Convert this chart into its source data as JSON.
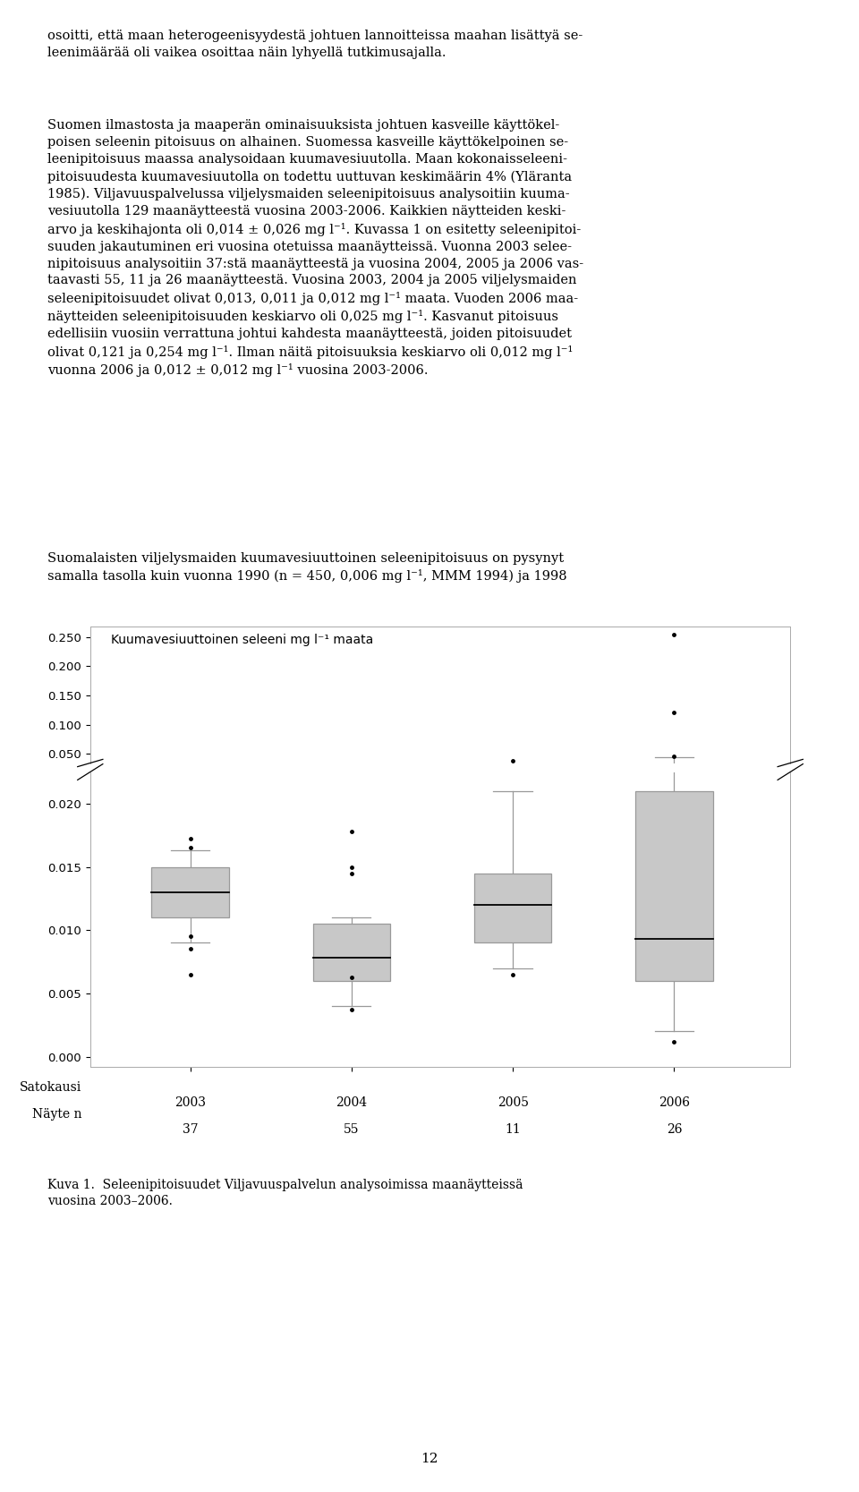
{
  "title_text": "Kuumavesiuuttoinen seleeni mg l⁻¹ maata",
  "years": [
    "2003",
    "2004",
    "2005",
    "2006"
  ],
  "n_samples": [
    "37",
    "55",
    "11",
    "26"
  ],
  "xlabel_line1": "Satokausi",
  "xlabel_line2": "Näyte n",
  "boxes": [
    {
      "year": "2003",
      "q1": 0.011,
      "median": 0.013,
      "q3": 0.015,
      "whisker_low": 0.009,
      "whisker_high": 0.0163,
      "fliers_low": [
        0.0095,
        0.0085,
        0.0065
      ],
      "fliers_high": [
        0.0165,
        0.0172
      ]
    },
    {
      "year": "2004",
      "q1": 0.006,
      "median": 0.0078,
      "q3": 0.0105,
      "whisker_low": 0.004,
      "whisker_high": 0.011,
      "fliers_low": [
        0.0063,
        0.0037
      ],
      "fliers_high": [
        0.0178,
        0.015,
        0.0145
      ]
    },
    {
      "year": "2005",
      "q1": 0.009,
      "median": 0.012,
      "q3": 0.0145,
      "whisker_low": 0.007,
      "whisker_high": 0.021,
      "fliers_low": [
        0.0065
      ],
      "fliers_high": [
        0.038
      ]
    },
    {
      "year": "2006",
      "q1": 0.006,
      "median": 0.0093,
      "q3": 0.021,
      "whisker_low": 0.002,
      "whisker_high": 0.044,
      "fliers_low": [
        0.0012
      ],
      "fliers_high": [
        0.046,
        0.121,
        0.254
      ]
    }
  ],
  "box_color": "#c8c8c8",
  "whisker_color": "#999999",
  "flier_color": "black",
  "para1": "osoitti, että maan heterogeenisyydestä johtuen lannoitteissa maahan lisättyä se-\nleenimäärää oli vaikea osoittaa näin lyhyellä tutkimusajalla.",
  "para2": "Suomen ilmastosta ja maaperän ominaisuuksista johtuen kasveille käyttökel-\npoisen seleenin pitoisuus on alhainen. Suomessa kasveille käyttökelpoinen se-\nleenipitoisuus maassa analysoidaan kuumavesiuutolla. Maan kokonaisseleeni-\npitoisuudesta kuumavesiuutolla on todettu uuttuvan keskimäärin 4% (Yläranta\n1985). Viljavuuspalvelussa viljelysmaiden seleenipitoisuus analysoitiin kuuma-\nvesiuutolla 129 maanäytteestä vuosina 2003-2006. Kaikkien näytteiden keski-\narvo ja keskihajonta oli 0,014 ± 0,026 mg l⁻¹. Kuvassa 1 on esitetty seleenipitoi-\nsuuden jakautuminen eri vuosina otetuissa maanäytteissä. Vuonna 2003 selee-\nnipitoisuus analysoitiin 37:stä maanäytteestä ja vuosina 2004, 2005 ja 2006 vas-\ntaavasti 55, 11 ja 26 maanäytteestä. Vuosina 2003, 2004 ja 2005 viljelysmaiden\nseleenipitoisuudet olivat 0,013, 0,011 ja 0,012 mg l⁻¹ maata. Vuoden 2006 maa-\nnäytteiden seleenipitoisuuden keskiarvo oli 0,025 mg l⁻¹. Kasvanut pitoisuus\nedellisiin vuosiin verrattuna johtui kahdesta maanäytteestä, joiden pitoisuudet\nolivat 0,121 ja 0,254 mg l⁻¹. Ilman näitä pitoisuuksia keskiarvo oli 0,012 mg l⁻¹\nvuonna 2006 ja 0,012 ± 0,012 mg l⁻¹ vuosina 2003-2006.",
  "para3": "Suomalaisten viljelysmaiden kuumavesiuuttoinen seleenipitoisuus on pysynyt\nsamalla tasolla kuin vuonna 1990 (n = 450, 0,006 mg l⁻¹, MMM 1994) ja 1998",
  "caption": "Kuva 1.  Seleenipitoisuudet Viljavuuspalvelun analysoimissa maanäytteissä\nvuosina 2003–2006.",
  "page_number": "12",
  "text_fontsize": 10.5,
  "label_fontsize": 10,
  "tick_fontsize": 9.5
}
